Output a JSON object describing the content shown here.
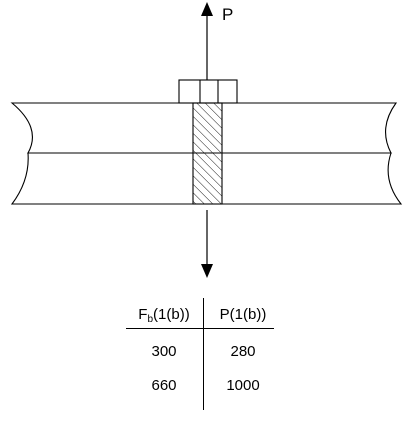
{
  "labels": {
    "force_up": "P"
  },
  "table": {
    "header_fb_main": "F",
    "header_fb_sub": "b",
    "header_fb_unit": "(1(b))",
    "header_p": "P(1(b))",
    "rows": [
      {
        "fb": "300",
        "p": "280"
      },
      {
        "fb": "660",
        "p": "1000"
      }
    ]
  }
}
